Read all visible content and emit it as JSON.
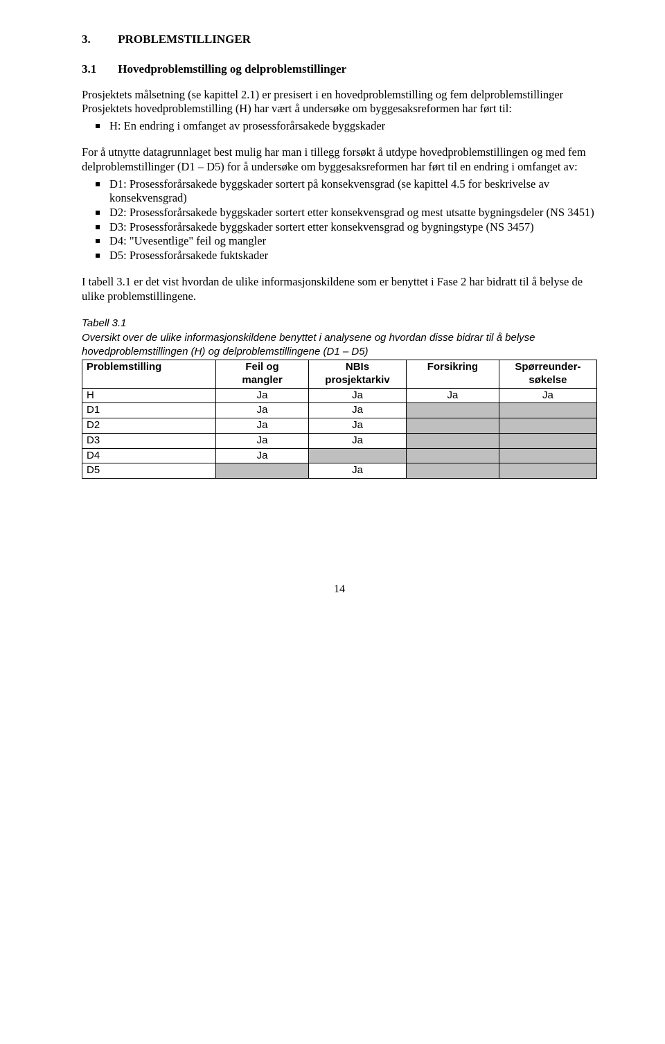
{
  "section": {
    "number": "3.",
    "title": "PROBLEMSTILLINGER"
  },
  "subsection": {
    "number": "3.1",
    "title": "Hovedproblemstilling og delproblemstillinger"
  },
  "intro_para": "Prosjektets målsetning (se kapittel 2.1) er presisert i en hovedproblemstilling og fem delproblemstillinger Prosjektets hovedproblemstilling (H) har vært å undersøke om byggesaksreformen har ført til:",
  "bullet_h": "H: En endring i omfanget av prosessforårsakede byggskader",
  "mid_para": "For å utnytte datagrunnlaget best mulig har man i tillegg forsøkt å utdype hovedproblemstillingen og med fem delproblemstillinger (D1 – D5) for å undersøke om byggesaksreformen har ført til en endring i omfanget av:",
  "d_bullets": [
    "D1: Prosessforårsakede byggskader sortert på konsekvensgrad (se kapittel 4.5 for beskrivelse av konsekvensgrad)",
    "D2: Prosessforårsakede byggskader sortert etter konsekvensgrad og mest utsatte bygningsdeler (NS 3451)",
    "D3: Prosessforårsakede byggskader sortert etter konsekvensgrad og bygningstype (NS 3457)",
    "D4: \"Uvesentlige\" feil og mangler",
    "D5: Prosessforårsakede fuktskader"
  ],
  "closing_para": "I tabell 3.1 er det vist hvordan de ulike informasjonskildene som er benyttet i Fase 2 har bidratt til å belyse de ulike problemstillingene.",
  "table": {
    "caption_title": "Tabell 3.1",
    "caption_body": "Oversikt over de ulike informasjonskildene benyttet i analysene og hvordan disse bidrar til å belyse hovedproblemstillingen (H) og delproblemstillingene (D1 – D5)",
    "columns": [
      {
        "label_line1": "Problemstilling",
        "label_line2": "",
        "width": "26%"
      },
      {
        "label_line1": "Feil og",
        "label_line2": "mangler",
        "width": "18%"
      },
      {
        "label_line1": "NBIs",
        "label_line2": "prosjektarkiv",
        "width": "19%"
      },
      {
        "label_line1": "Forsikring",
        "label_line2": "",
        "width": "18%"
      },
      {
        "label_line1": "Spørreunder-",
        "label_line2": "søkelse",
        "width": "19%"
      }
    ],
    "rows": [
      {
        "label": "H",
        "cells": [
          "Ja",
          "Ja",
          "Ja",
          "Ja"
        ],
        "shaded": [
          false,
          false,
          false,
          false
        ]
      },
      {
        "label": "D1",
        "cells": [
          "Ja",
          "Ja",
          "",
          ""
        ],
        "shaded": [
          false,
          false,
          true,
          true
        ]
      },
      {
        "label": "D2",
        "cells": [
          "Ja",
          "Ja",
          "",
          ""
        ],
        "shaded": [
          false,
          false,
          true,
          true
        ]
      },
      {
        "label": "D3",
        "cells": [
          "Ja",
          "Ja",
          "",
          ""
        ],
        "shaded": [
          false,
          false,
          true,
          true
        ]
      },
      {
        "label": "D4",
        "cells": [
          "Ja",
          "",
          "",
          ""
        ],
        "shaded": [
          false,
          true,
          true,
          true
        ]
      },
      {
        "label": "D5",
        "cells": [
          "",
          "Ja",
          "",
          ""
        ],
        "shaded": [
          true,
          false,
          true,
          true
        ]
      }
    ],
    "shaded_color": "#bfbfbf"
  },
  "page_number": "14"
}
